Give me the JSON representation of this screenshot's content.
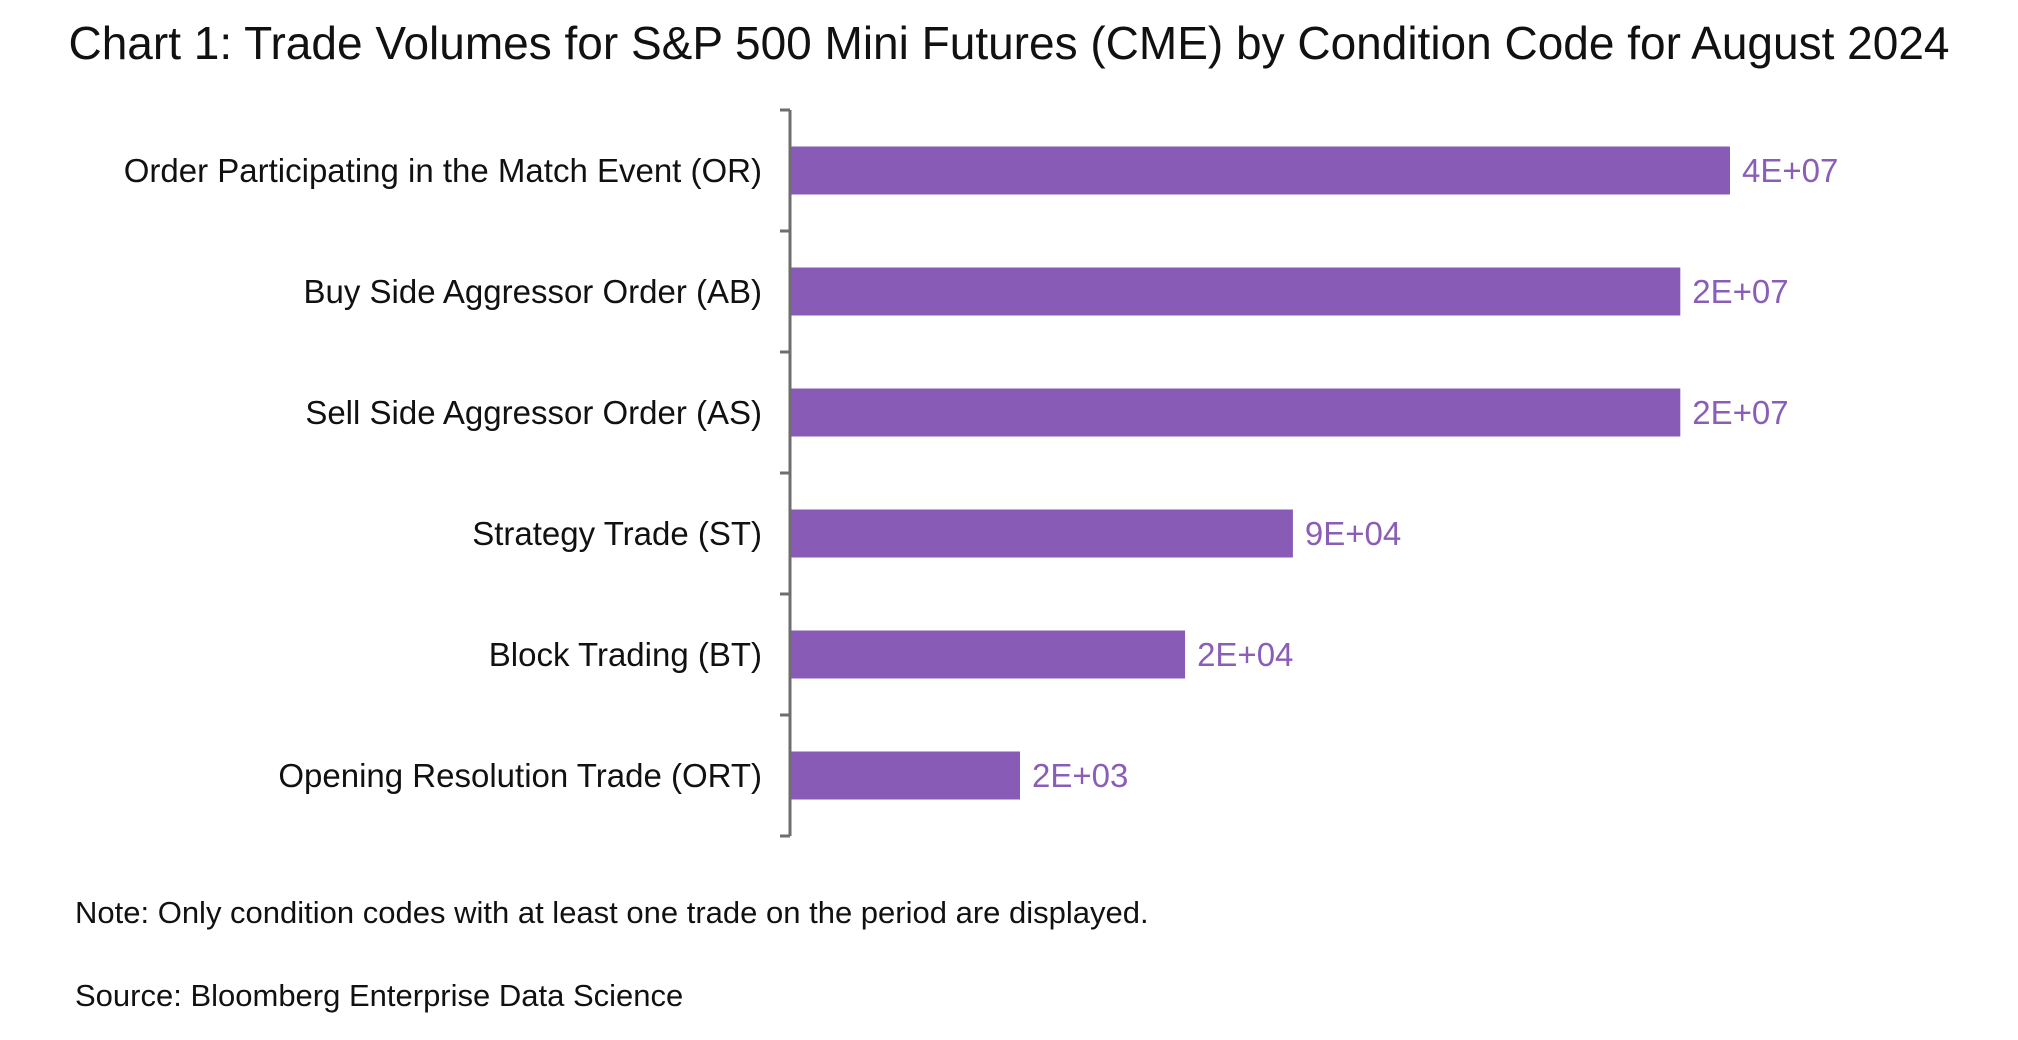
{
  "colors": {
    "bar": "#885CB6",
    "value_label": "#8A5EB7",
    "axis": "#6E6E6E",
    "text": "#111111"
  },
  "chart_data": {
    "type": "bar",
    "orientation": "horizontal",
    "title": "Chart 1: Trade Volumes for S&P 500 Mini Futures (CME) by Condition Code for August 2024",
    "xlabel": "",
    "ylabel": "",
    "x_scale": "log",
    "grid": false,
    "legend": "none",
    "categories": [
      "Order Participating in the Match Event (OR)",
      "Buy Side Aggressor Order (AB)",
      "Sell Side Aggressor Order (AS)",
      "Strategy Trade (ST)",
      "Block Trading (BT)",
      "Opening Resolution Trade (ORT)"
    ],
    "values": [
      40000000,
      20000000,
      20000000,
      90000,
      20000,
      2000
    ],
    "data_labels": [
      "4E+07",
      "2E+07",
      "2E+07",
      "9E+04",
      "2E+04",
      "2E+03"
    ]
  },
  "notes": {
    "note": "Note: Only condition codes with at least one trade on the period are displayed.",
    "source": "Source: Bloomberg Enterprise Data Science"
  }
}
